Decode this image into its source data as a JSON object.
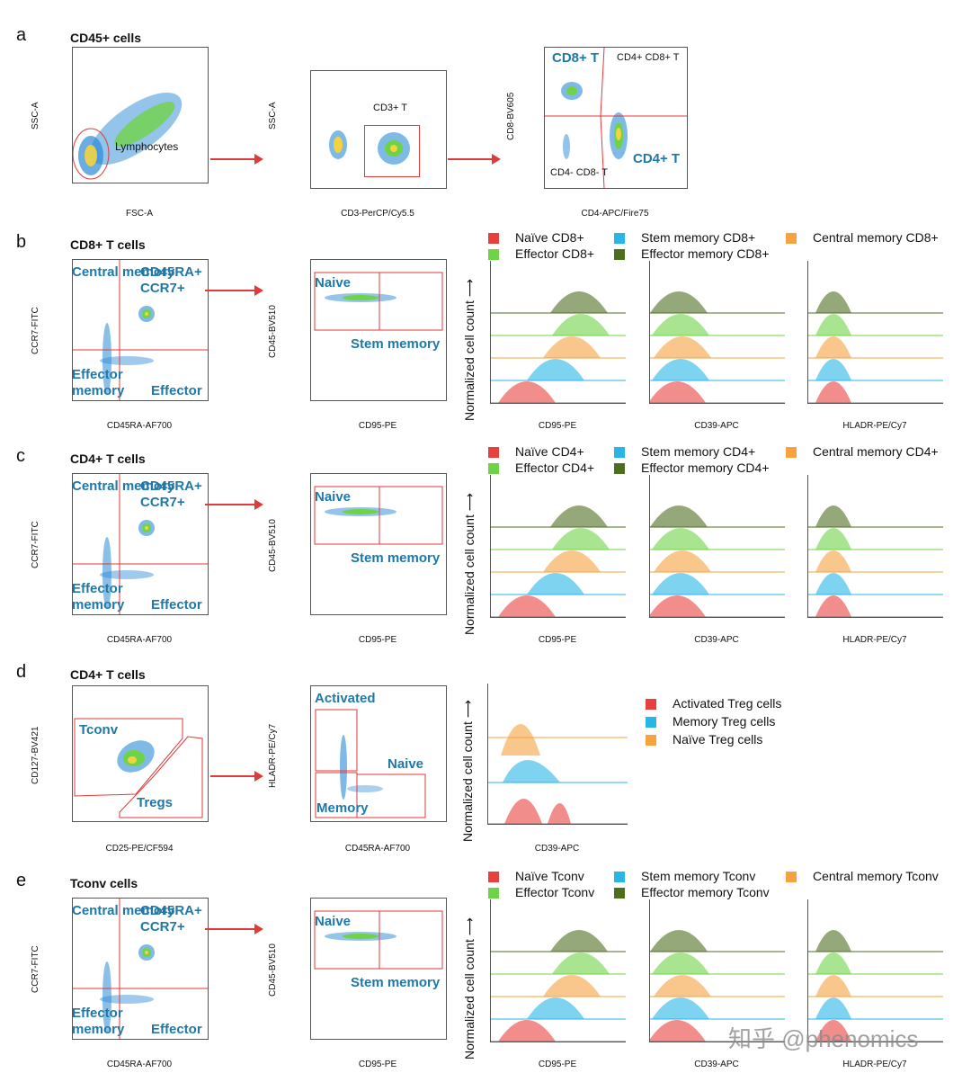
{
  "panels": {
    "a": {
      "letter": "a",
      "title": "CD45+ cells",
      "p1": {
        "x": "FSC-A",
        "y": "SSC-A",
        "gate": "Lymphocytes"
      },
      "p2": {
        "x": "CD3-PerCP/Cy5.5",
        "y": "SSC-A",
        "gate": "CD3+ T"
      },
      "p3": {
        "x": "CD4-APC/Fire75",
        "y": "CD8-BV605",
        "q1": "CD8+ T",
        "q2": "CD4+ CD8+ T",
        "q3": "CD4- CD8- T",
        "q4": "CD4+ T"
      }
    },
    "b": {
      "letter": "b",
      "title": "CD8+ T cells",
      "x1": "CD45RA-AF700",
      "y1": "CCR7-FITC",
      "x2": "CD95-PE",
      "y2": "CD45-BV510",
      "legend": [
        "Naïve CD8+",
        "Stem memory CD8+",
        "Central memory CD8+",
        "Effector CD8+",
        "Effector memory CD8+"
      ]
    },
    "c": {
      "letter": "c",
      "title": "CD4+ T cells",
      "x1": "CD45RA-AF700",
      "y1": "CCR7-FITC",
      "x2": "CD95-PE",
      "y2": "CD45-BV510",
      "legend": [
        "Naïve CD4+",
        "Stem memory CD4+",
        "Central memory CD4+",
        "Effector CD4+",
        "Effector memory CD4+"
      ]
    },
    "d": {
      "letter": "d",
      "title": "CD4+ T cells",
      "x1": "CD25-PE/CF594",
      "y1": "CD127-BV421",
      "g1": "Tconv",
      "g2": "Tregs",
      "x2": "CD45RA-AF700",
      "y2": "HLADR-PE/Cy7",
      "g3": "Activated",
      "g4": "Naive",
      "g5": "Memory",
      "hx": "CD39-APC",
      "legend": [
        "Activated Treg cells",
        "Memory Treg cells",
        "Naïve Treg cells"
      ]
    },
    "e": {
      "letter": "e",
      "title": "Tconv cells",
      "x1": "CD45RA-AF700",
      "y1": "CCR7-FITC",
      "x2": "CD95-PE",
      "y2": "CD45-BV510",
      "legend": [
        "Naïve Tconv",
        "Stem memory Tconv",
        "Central memory Tconv",
        "Effector Tconv",
        "Effector memory Tconv"
      ]
    }
  },
  "gates": {
    "central": "Central memory",
    "cd45ra_a": "CD45RA+",
    "cd45ra_b": "CCR7+",
    "effmem": "Effector memory",
    "effector": "Effector",
    "naive": "Naive",
    "stem": "Stem memory"
  },
  "hist_x": [
    "CD95-PE",
    "CD39-APC",
    "HLADR-PE/Cy7"
  ],
  "ncc": "Normalized cell count ⟶",
  "colors": {
    "naive": "#e8413d",
    "stem": "#27b6e6",
    "central": "#f5a23f",
    "effector": "#6fd347",
    "effmem": "#4c6e1f"
  },
  "watermark": "知乎 @phenomics"
}
